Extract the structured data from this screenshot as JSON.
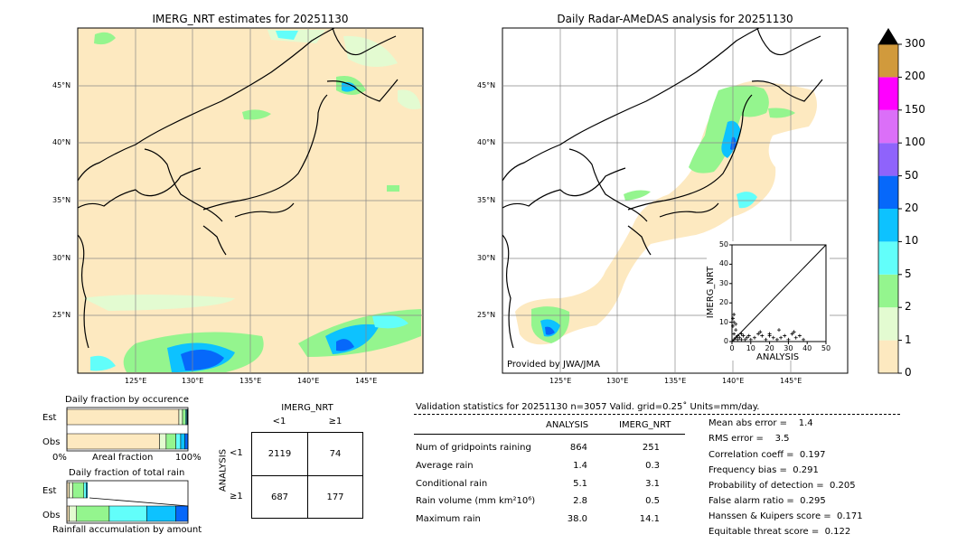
{
  "left_map": {
    "title": "IMERG_NRT estimates for 20251130",
    "lat_labels": [
      "45°N",
      "40°N",
      "35°N",
      "30°N",
      "25°N"
    ],
    "lon_labels": [
      "125°E",
      "130°E",
      "135°E",
      "140°E",
      "145°E"
    ]
  },
  "right_map": {
    "title": "Daily Radar-AMeDAS analysis for 20251130",
    "lat_labels": [
      "45°N",
      "40°N",
      "35°N",
      "30°N",
      "25°N"
    ],
    "lon_labels": [
      "125°E",
      "130°E",
      "135°E",
      "140°E",
      "145°E"
    ],
    "provider": "Provided by JWA/JMA"
  },
  "colorbar": {
    "levels": [
      "0",
      "1",
      "2",
      "5",
      "10",
      "20",
      "50",
      "100",
      "150",
      "200",
      "300"
    ],
    "colors": [
      "#fde9c0",
      "#e3fbd1",
      "#94f58e",
      "#62fefa",
      "#0dc2ff",
      "#0668fa",
      "#8f63fb",
      "#db6ff8",
      "#ff00ff",
      "#d19a3c",
      "#000000"
    ]
  },
  "chart_data": [
    {
      "type": "scatter",
      "title": "",
      "xlabel": "ANALYSIS",
      "ylabel": "IMERG_NRT",
      "xlim": [
        0,
        50
      ],
      "ylim": [
        0,
        50
      ],
      "xticks": [
        "0",
        "10",
        "20",
        "30",
        "40",
        "50"
      ],
      "yticks": [
        "0",
        "10",
        "20",
        "30",
        "40",
        "50"
      ],
      "points": [
        [
          1,
          1
        ],
        [
          1,
          4
        ],
        [
          2,
          2
        ],
        [
          2,
          6
        ],
        [
          3,
          1
        ],
        [
          3,
          3
        ],
        [
          4,
          2
        ],
        [
          5,
          1
        ],
        [
          5,
          4
        ],
        [
          6,
          3
        ],
        [
          7,
          1
        ],
        [
          8,
          2
        ],
        [
          9,
          3
        ],
        [
          10,
          1
        ],
        [
          12,
          2
        ],
        [
          14,
          4
        ],
        [
          16,
          3
        ],
        [
          18,
          1
        ],
        [
          20,
          3
        ],
        [
          22,
          2
        ],
        [
          24,
          1
        ],
        [
          26,
          2
        ],
        [
          28,
          3
        ],
        [
          30,
          1
        ],
        [
          32,
          4
        ],
        [
          34,
          2
        ],
        [
          36,
          3
        ],
        [
          38,
          1
        ],
        [
          0.5,
          8
        ],
        [
          1,
          10
        ],
        [
          0.5,
          12
        ],
        [
          2,
          9
        ],
        [
          1,
          14
        ],
        [
          15,
          5
        ],
        [
          20,
          4
        ],
        [
          25,
          6
        ],
        [
          33,
          5
        ]
      ]
    },
    {
      "type": "bar",
      "title": "Daily fraction by occurence",
      "categories": [
        "Est",
        "Obs"
      ],
      "xlabel": "Areal fraction",
      "xticks": [
        "0%",
        "100%"
      ],
      "series": [
        {
          "values": [
            0.925,
            0.765
          ],
          "color": "#fde9c0"
        },
        {
          "values": [
            0.03,
            0.055
          ],
          "color": "#e3fbd1"
        },
        {
          "values": [
            0.025,
            0.08
          ],
          "color": "#94f58e"
        },
        {
          "values": [
            0.01,
            0.04
          ],
          "color": "#62fefa"
        },
        {
          "values": [
            0.005,
            0.035
          ],
          "color": "#0dc2ff"
        },
        {
          "values": [
            0.005,
            0.025
          ],
          "color": "#0668fa"
        }
      ]
    },
    {
      "type": "bar",
      "title": "Daily fraction of total rain",
      "categories": [
        "Est",
        "Obs"
      ],
      "xlabel": "Rainfall accumulation by amount",
      "series": [
        {
          "values": [
            0.02,
            0.02
          ],
          "color": "#fde9c0"
        },
        {
          "values": [
            0.03,
            0.06
          ],
          "color": "#e3fbd1"
        },
        {
          "values": [
            0.09,
            0.27
          ],
          "color": "#94f58e"
        },
        {
          "values": [
            0.02,
            0.31
          ],
          "color": "#62fefa"
        },
        {
          "values": [
            0.01,
            0.24
          ],
          "color": "#0dc2ff"
        },
        {
          "values": [
            0.0,
            0.1
          ],
          "color": "#0668fa"
        }
      ]
    },
    {
      "type": "table",
      "title": "IMERG_NRT",
      "row_title": "ANALYSIS",
      "col_headers": [
        "<1",
        "≥1"
      ],
      "row_headers": [
        "<1",
        "≥1"
      ],
      "cells": [
        [
          "2119",
          "74"
        ],
        [
          "687",
          "177"
        ]
      ]
    }
  ],
  "stats": {
    "header": "Validation statistics for 20251130  n=3057 Valid. grid=0.25˚ Units=mm/day.",
    "col_analysis": "ANALYSIS",
    "col_imerg": "IMERG_NRT",
    "rows": [
      {
        "label": "Num of gridpoints raining",
        "analysis": "864",
        "imerg": "251"
      },
      {
        "label": "Average rain",
        "analysis": "1.4",
        "imerg": "0.3"
      },
      {
        "label": "Conditional rain",
        "analysis": "5.1",
        "imerg": "3.1"
      },
      {
        "label": "Rain volume (mm km²10⁶)",
        "analysis": "2.8",
        "imerg": "0.5"
      },
      {
        "label": "Maximum rain",
        "analysis": "38.0",
        "imerg": "14.1"
      }
    ],
    "scores": [
      "Mean abs error =    1.4",
      "RMS error =    3.5",
      "Correlation coeff =  0.197",
      "Frequency bias =  0.291",
      "Probability of detection =  0.205",
      "False alarm ratio =  0.295",
      "Hanssen & Kuipers score =  0.171",
      "Equitable threat score =  0.122"
    ]
  }
}
